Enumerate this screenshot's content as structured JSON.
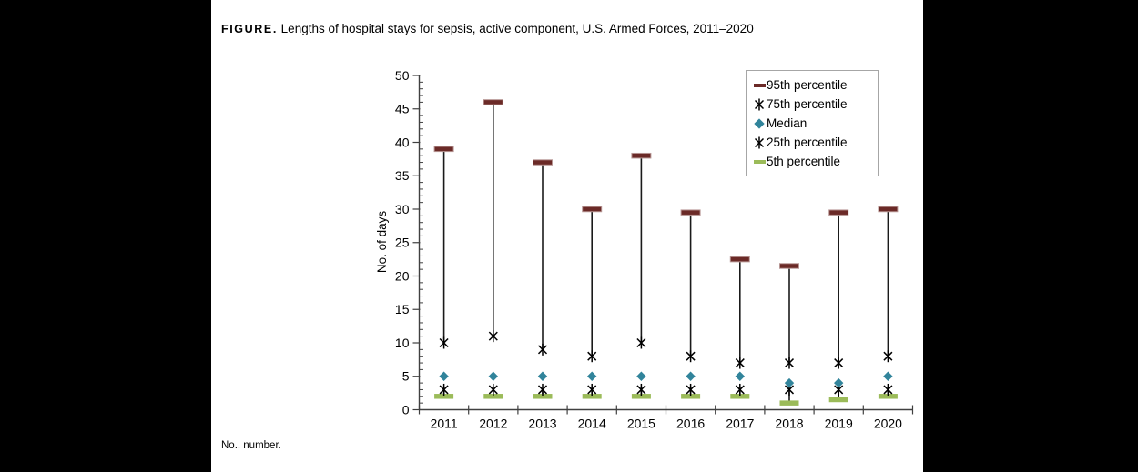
{
  "page": {
    "background_color": "#000000",
    "panel_color": "#ffffff"
  },
  "figure": {
    "title_label": "FIGURE.",
    "title_text": "Lengths of hospital stays for sepsis, active component, U.S. Armed Forces, 2011–2020",
    "footnote": "No., number."
  },
  "chart_data": {
    "type": "scatter",
    "title": "Lengths of hospital stays for sepsis, active component, U.S. Armed Forces, 2011–2020",
    "xlabel": "",
    "ylabel": "No. of days",
    "ylim": [
      0,
      50
    ],
    "ytick_step": 5,
    "y_minor_step": 1,
    "grid": false,
    "legend_position": "top-right",
    "categories": [
      "2011",
      "2012",
      "2013",
      "2014",
      "2015",
      "2016",
      "2017",
      "2018",
      "2019",
      "2020"
    ],
    "series": [
      {
        "name": "95th percentile",
        "marker": "dash",
        "color": "#6b2a27",
        "edge_color": "#b79694",
        "values": [
          39,
          46,
          37,
          30,
          38,
          29.5,
          22.5,
          21.5,
          29.5,
          30
        ]
      },
      {
        "name": "75th percentile",
        "marker": "star",
        "color": "#000000",
        "values": [
          10,
          11,
          9,
          8,
          10,
          8,
          7,
          7,
          7,
          8
        ]
      },
      {
        "name": "Median",
        "marker": "diamond",
        "color": "#31849b",
        "values": [
          5,
          5,
          5,
          5,
          5,
          5,
          5,
          4,
          4,
          5
        ]
      },
      {
        "name": "25th percentile",
        "marker": "star",
        "color": "#000000",
        "values": [
          3,
          3,
          3,
          3,
          3,
          3,
          3,
          3,
          3,
          3
        ]
      },
      {
        "name": "5th percentile",
        "marker": "dash",
        "color": "#9bbb59",
        "values": [
          2,
          2,
          2,
          2,
          2,
          2,
          2,
          1,
          1.5,
          2
        ]
      }
    ],
    "range_lines": [
      [
        "95th percentile",
        "75th percentile"
      ],
      [
        "25th percentile",
        "5th percentile"
      ]
    ],
    "line_color": "#1a1a1a",
    "axis_color": "#404040"
  }
}
